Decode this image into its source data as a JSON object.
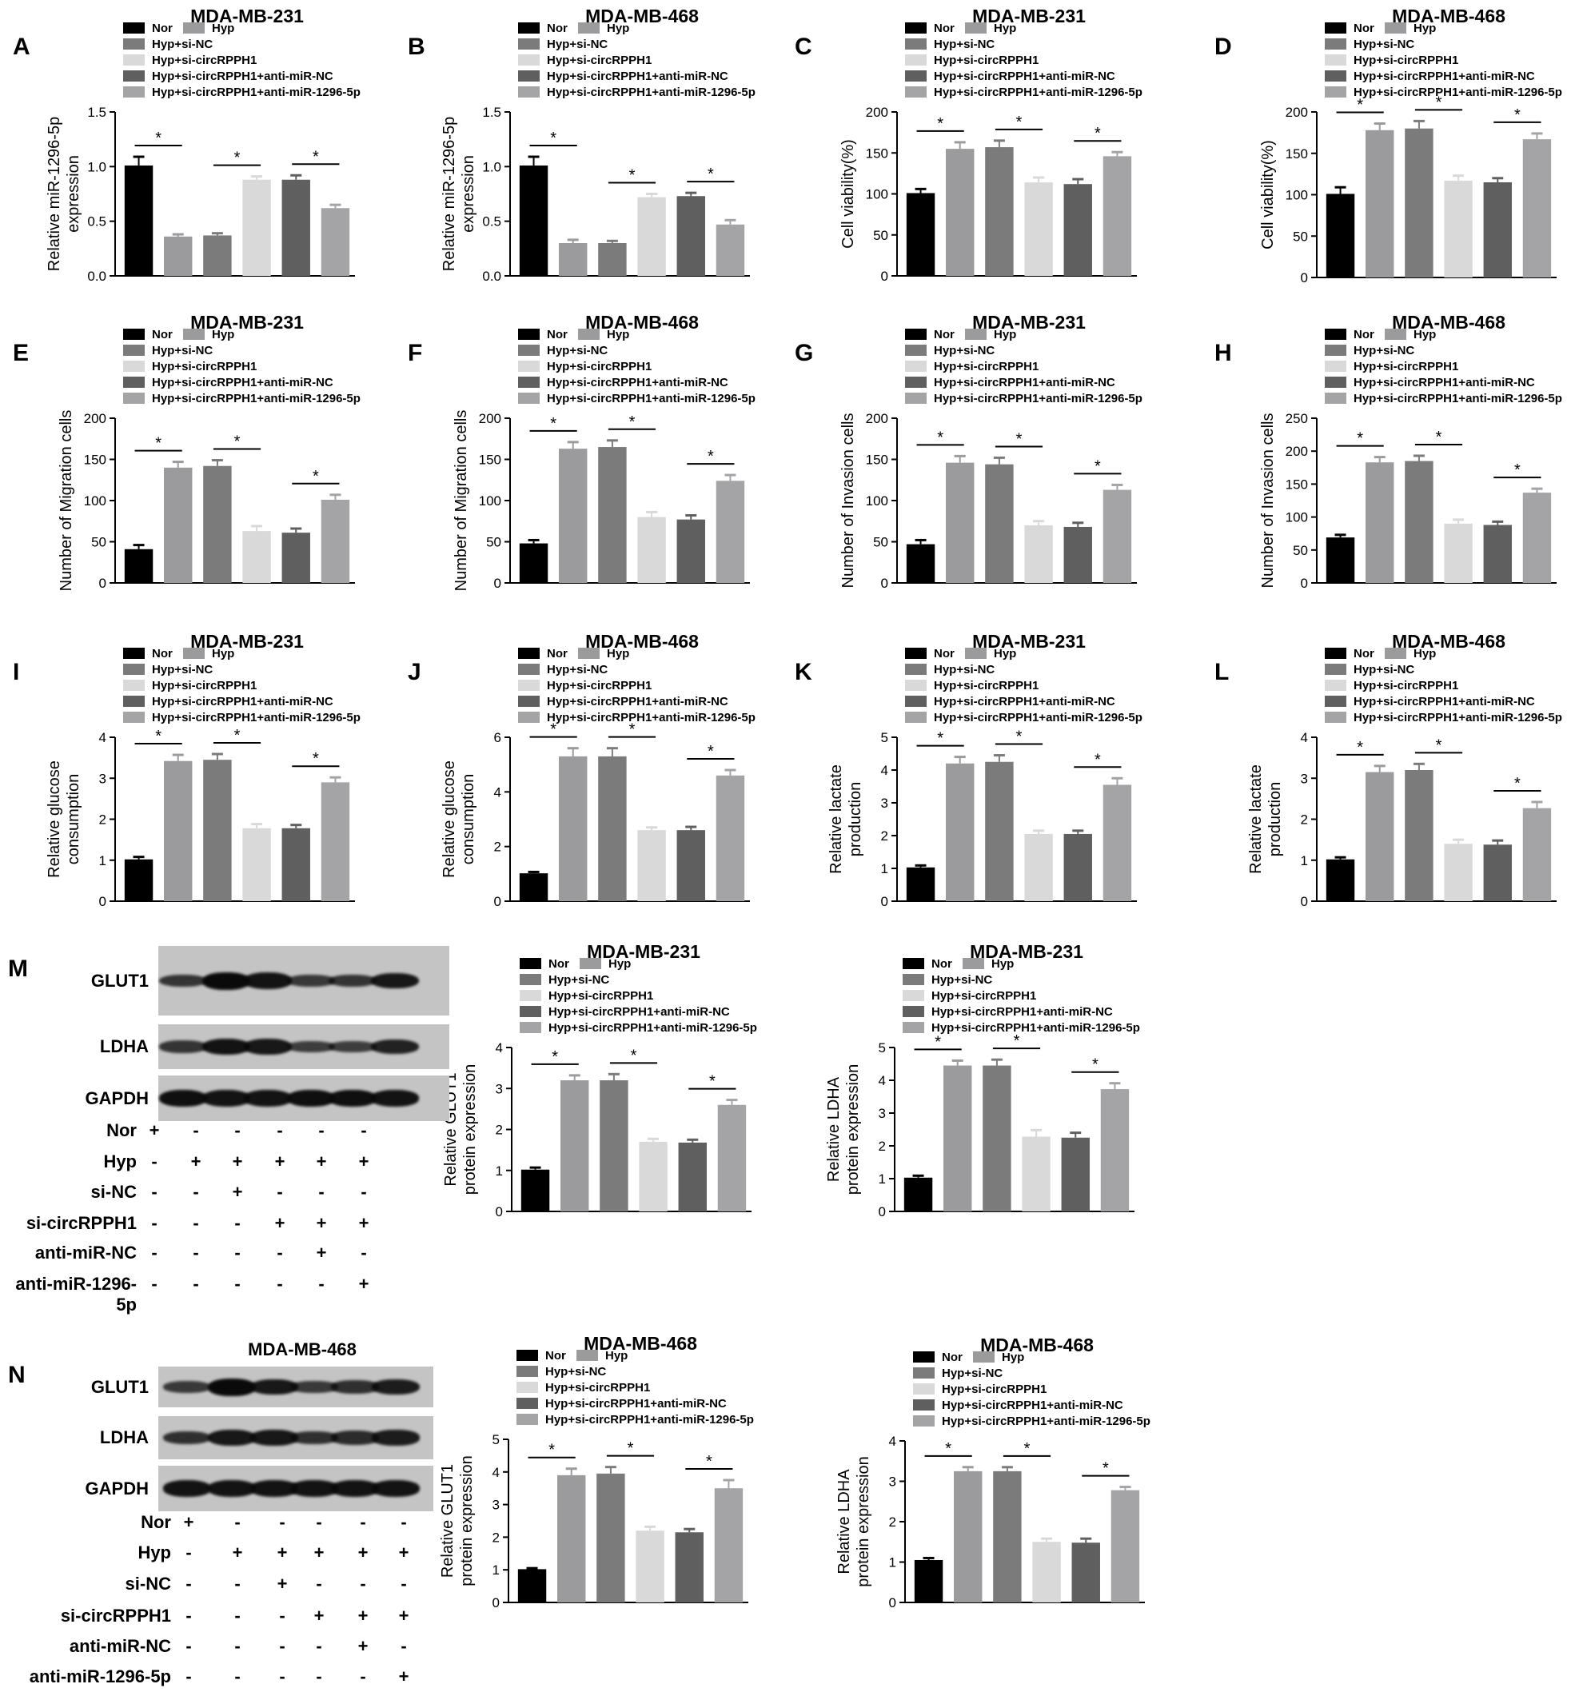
{
  "legend": [
    "Nor",
    "Hyp",
    "Hyp+si-NC",
    "Hyp+si-circRPPH1",
    "Hyp+si-circRPPH1+anti-miR-NC",
    "Hyp+si-circRPPH1+anti-miR-1296-5p"
  ],
  "colors": [
    "#000000",
    "#9b9b9d",
    "#7b7b7b",
    "#d9d9d9",
    "#5f5f5f",
    "#a4a4a6"
  ],
  "chart_data": [
    {
      "type": "bar",
      "panel": "A",
      "title": "MDA-MB-231",
      "ylabel": [
        "Relative miR-1296-5p",
        "expression"
      ],
      "ylim": [
        0,
        1.5
      ],
      "ticks": [
        "0.0",
        "0.5",
        "1.0",
        "1.5"
      ],
      "values": [
        1.01,
        0.36,
        0.37,
        0.88,
        0.88,
        0.62
      ],
      "errors": [
        0.08,
        0.02,
        0.02,
        0.03,
        0.04,
        0.03
      ],
      "significance": "*"
    },
    {
      "type": "bar",
      "panel": "B",
      "title": "MDA-MB-468",
      "ylabel": [
        "Relative miR-1296-5p",
        "expression"
      ],
      "ylim": [
        0,
        1.5
      ],
      "ticks": [
        "0.0",
        "0.5",
        "1.0",
        "1.5"
      ],
      "values": [
        1.01,
        0.3,
        0.3,
        0.72,
        0.73,
        0.47
      ],
      "errors": [
        0.08,
        0.03,
        0.02,
        0.03,
        0.03,
        0.04
      ],
      "significance": "*"
    },
    {
      "type": "bar",
      "panel": "C",
      "title": "MDA-MB-231",
      "ylabel": [
        "Cell viability(%)"
      ],
      "ylim": [
        0,
        200
      ],
      "ticks": [
        "0",
        "50",
        "100",
        "150",
        "200"
      ],
      "values": [
        101,
        155,
        157,
        114,
        112,
        146
      ],
      "errors": [
        5,
        8,
        8,
        6,
        6,
        5
      ],
      "significance": "*"
    },
    {
      "type": "bar",
      "panel": "D",
      "title": "MDA-MB-468",
      "ylabel": [
        "Cell viability(%)"
      ],
      "ylim": [
        0,
        200
      ],
      "ticks": [
        "0",
        "50",
        "100",
        "150",
        "200"
      ],
      "values": [
        101,
        178,
        180,
        117,
        115,
        167
      ],
      "errors": [
        8,
        8,
        9,
        6,
        5,
        7
      ],
      "significance": "*"
    },
    {
      "type": "bar",
      "panel": "E",
      "title": "MDA-MB-231",
      "ylabel": [
        "Number of Migration cells"
      ],
      "ylim": [
        0,
        200
      ],
      "ticks": [
        "0",
        "50",
        "100",
        "150",
        "200"
      ],
      "values": [
        41,
        140,
        142,
        63,
        61,
        101
      ],
      "errors": [
        5,
        7,
        7,
        6,
        5,
        6
      ],
      "significance": "*"
    },
    {
      "type": "bar",
      "panel": "F",
      "title": "MDA-MB-468",
      "ylabel": [
        "Number of Migration cells"
      ],
      "ylim": [
        0,
        200
      ],
      "ticks": [
        "0",
        "50",
        "100",
        "150",
        "200"
      ],
      "values": [
        48,
        163,
        165,
        80,
        77,
        124
      ],
      "errors": [
        4,
        8,
        8,
        6,
        5,
        7
      ],
      "significance": "*"
    },
    {
      "type": "bar",
      "panel": "G",
      "title": "MDA-MB-231",
      "ylabel": [
        "Number of Invasion cells"
      ],
      "ylim": [
        0,
        200
      ],
      "ticks": [
        "0",
        "50",
        "100",
        "150",
        "200"
      ],
      "values": [
        47,
        146,
        144,
        70,
        68,
        113
      ],
      "errors": [
        5,
        8,
        8,
        5,
        5,
        6
      ],
      "significance": "*"
    },
    {
      "type": "bar",
      "panel": "H",
      "title": "MDA-MB-468",
      "ylabel": [
        "Number of Invasion cells"
      ],
      "ylim": [
        0,
        250
      ],
      "ticks": [
        "0",
        "50",
        "100",
        "150",
        "200",
        "250"
      ],
      "values": [
        69,
        183,
        185,
        90,
        88,
        137
      ],
      "errors": [
        4,
        8,
        8,
        6,
        5,
        6
      ],
      "significance": "*"
    },
    {
      "type": "bar",
      "panel": "I",
      "title": "MDA-MB-231",
      "ylabel": [
        "Relative glucose",
        "consumption"
      ],
      "ylim": [
        0,
        4
      ],
      "ticks": [
        "0",
        "1",
        "2",
        "3",
        "4"
      ],
      "values": [
        1.02,
        3.42,
        3.45,
        1.78,
        1.78,
        2.9
      ],
      "errors": [
        0.06,
        0.15,
        0.14,
        0.1,
        0.08,
        0.12
      ],
      "significance": "*"
    },
    {
      "type": "bar",
      "panel": "J",
      "title": "MDA-MB-468",
      "ylabel": [
        "Relative glucose",
        "consumption"
      ],
      "ylim": [
        0,
        6
      ],
      "ticks": [
        "0",
        "2",
        "4",
        "6"
      ],
      "values": [
        1.02,
        5.3,
        5.3,
        2.6,
        2.6,
        4.6
      ],
      "errors": [
        0.05,
        0.3,
        0.3,
        0.1,
        0.12,
        0.2
      ],
      "significance": "*"
    },
    {
      "type": "bar",
      "panel": "K",
      "title": "MDA-MB-231",
      "ylabel": [
        "Relative lactate",
        "production"
      ],
      "ylim": [
        0,
        5
      ],
      "ticks": [
        "0",
        "1",
        "2",
        "3",
        "4",
        "5"
      ],
      "values": [
        1.03,
        4.2,
        4.25,
        2.05,
        2.05,
        3.55
      ],
      "errors": [
        0.06,
        0.2,
        0.2,
        0.1,
        0.1,
        0.2
      ],
      "significance": "*"
    },
    {
      "type": "bar",
      "panel": "L",
      "title": "MDA-MB-468",
      "ylabel": [
        "Relative lactate",
        "production"
      ],
      "ylim": [
        0,
        4
      ],
      "ticks": [
        "0",
        "1",
        "2",
        "3",
        "4"
      ],
      "values": [
        1.02,
        3.15,
        3.2,
        1.4,
        1.38,
        2.27
      ],
      "errors": [
        0.05,
        0.15,
        0.15,
        0.1,
        0.1,
        0.15
      ],
      "significance": "*"
    },
    {
      "type": "bar",
      "panel": "",
      "title": "MDA-MB-231",
      "ylabel": [
        "Relative GLUT1",
        "protein expression"
      ],
      "ylim": [
        0,
        4
      ],
      "ticks": [
        "0",
        "1",
        "2",
        "3",
        "4"
      ],
      "values": [
        1.02,
        3.2,
        3.2,
        1.7,
        1.68,
        2.6
      ],
      "errors": [
        0.05,
        0.12,
        0.15,
        0.07,
        0.07,
        0.12
      ],
      "significance": "*"
    },
    {
      "type": "bar",
      "panel": "",
      "title": "MDA-MB-231",
      "ylabel": [
        "Relative LDHA",
        "protein expression"
      ],
      "ylim": [
        0,
        5
      ],
      "ticks": [
        "0",
        "1",
        "2",
        "3",
        "4",
        "5"
      ],
      "values": [
        1.03,
        4.45,
        4.45,
        2.28,
        2.25,
        3.73
      ],
      "errors": [
        0.06,
        0.15,
        0.18,
        0.2,
        0.15,
        0.18
      ],
      "significance": "*"
    },
    {
      "type": "bar",
      "panel": "",
      "title": "MDA-MB-468",
      "ylabel": [
        "Relative GLUT1",
        "protein expression"
      ],
      "ylim": [
        0,
        5
      ],
      "ticks": [
        "0",
        "1",
        "2",
        "3",
        "4",
        "5"
      ],
      "values": [
        1.02,
        3.9,
        3.95,
        2.2,
        2.15,
        3.5
      ],
      "errors": [
        0.03,
        0.2,
        0.2,
        0.12,
        0.1,
        0.25
      ],
      "significance": "*"
    },
    {
      "type": "bar",
      "panel": "",
      "title": "MDA-MB-468",
      "ylabel": [
        "Relative LDHA",
        "protein expression"
      ],
      "ylim": [
        0,
        4
      ],
      "ticks": [
        "0",
        "1",
        "2",
        "3",
        "4"
      ],
      "values": [
        1.05,
        3.25,
        3.25,
        1.5,
        1.48,
        2.78
      ],
      "errors": [
        0.05,
        0.1,
        0.1,
        0.08,
        0.1,
        0.08
      ],
      "significance": "*"
    }
  ],
  "blots": [
    {
      "panel": "M",
      "title": "MDA-MB-231",
      "rows": [
        {
          "name": "GLUT1",
          "intensity": [
            0.55,
            1,
            0.9,
            0.5,
            0.55,
            0.85
          ]
        },
        {
          "name": "LDHA",
          "intensity": [
            0.55,
            0.9,
            0.85,
            0.45,
            0.45,
            0.75
          ]
        },
        {
          "name": "GAPDH",
          "intensity": [
            0.95,
            0.9,
            0.9,
            0.95,
            0.95,
            0.9
          ]
        }
      ],
      "conditions": [
        {
          "name": "Nor",
          "marks": [
            "+",
            "-",
            "-",
            "-",
            "-",
            "-"
          ]
        },
        {
          "name": "Hyp",
          "marks": [
            "-",
            "+",
            "+",
            "+",
            "+",
            "+"
          ]
        },
        {
          "name": "si-NC",
          "marks": [
            "-",
            "-",
            "+",
            "-",
            "-",
            "-"
          ]
        },
        {
          "name": "si-circRPPH1",
          "marks": [
            "-",
            "-",
            "-",
            "+",
            "+",
            "+"
          ]
        },
        {
          "name": "anti-miR-NC",
          "marks": [
            "-",
            "-",
            "-",
            "-",
            "+",
            "-"
          ]
        },
        {
          "name": "anti-miR-1296-5p",
          "marks": [
            "-",
            "-",
            "-",
            "-",
            "-",
            "+"
          ]
        }
      ]
    },
    {
      "panel": "N",
      "title": "MDA-MB-468",
      "rows": [
        {
          "name": "GLUT1",
          "intensity": [
            0.5,
            1,
            0.85,
            0.5,
            0.6,
            0.8
          ]
        },
        {
          "name": "LDHA",
          "intensity": [
            0.6,
            0.85,
            0.85,
            0.6,
            0.65,
            0.8
          ]
        },
        {
          "name": "GAPDH",
          "intensity": [
            0.9,
            0.9,
            0.9,
            0.9,
            0.9,
            0.9
          ]
        }
      ],
      "conditions": [
        {
          "name": "Nor",
          "marks": [
            "+",
            "-",
            "-",
            "-",
            "-",
            "-"
          ]
        },
        {
          "name": "Hyp",
          "marks": [
            "-",
            "+",
            "+",
            "+",
            "+",
            "+"
          ]
        },
        {
          "name": "si-NC",
          "marks": [
            "-",
            "-",
            "+",
            "-",
            "-",
            "-"
          ]
        },
        {
          "name": "si-circRPPH1",
          "marks": [
            "-",
            "-",
            "-",
            "+",
            "+",
            "+"
          ]
        },
        {
          "name": "anti-miR-NC",
          "marks": [
            "-",
            "-",
            "-",
            "-",
            "+",
            "-"
          ]
        },
        {
          "name": "anti-miR-1296-5p",
          "marks": [
            "-",
            "-",
            "-",
            "-",
            "-",
            "+"
          ]
        }
      ]
    }
  ]
}
